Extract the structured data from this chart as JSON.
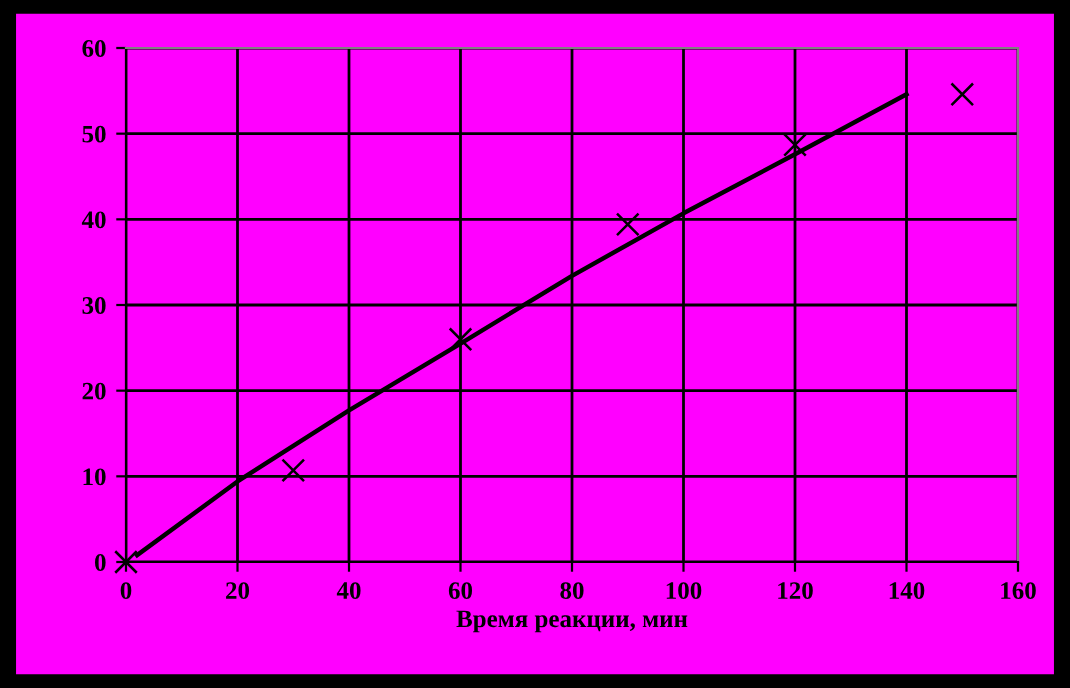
{
  "chart_data": {
    "type": "scatter",
    "xlabel": "Время реакции, мин",
    "x": [
      0,
      30,
      60,
      90,
      120,
      150
    ],
    "series": [
      {
        "color": "#000000",
        "marker": "cross",
        "values": [
          0,
          10.7,
          26.0,
          39.4,
          48.7,
          54.6
        ]
      },
      {
        "type": "line",
        "color": "#000000",
        "x": [
          2,
          20,
          40,
          60,
          80,
          100,
          120,
          140
        ],
        "values": [
          0.8,
          9.4,
          17.7,
          25.5,
          33.4,
          40.7,
          47.6,
          54.6
        ]
      }
    ],
    "xlim": [
      0,
      160
    ],
    "xticks": [
      0,
      20,
      40,
      60,
      80,
      100,
      120,
      140,
      160
    ],
    "ylim": [
      0,
      60
    ],
    "yticks": [
      0,
      10,
      20,
      30,
      40,
      50,
      60
    ],
    "grid": true
  }
}
